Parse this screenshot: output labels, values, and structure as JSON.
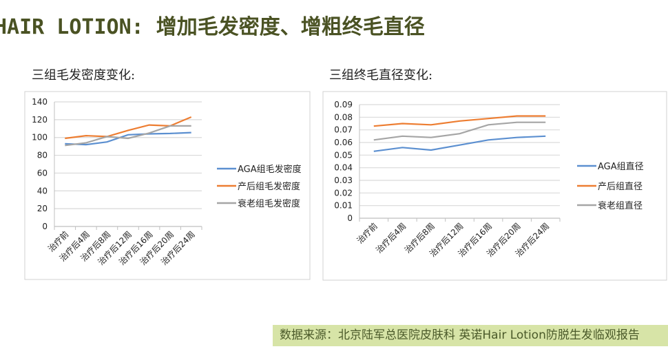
{
  "title": "HAIR LOTION: 增加毛发密度、增粗终毛直径",
  "subtitles": [
    "三组毛发密度变化:",
    "三组终毛直径变化:"
  ],
  "footer": "数据来源：北京陆军总医院皮肤科 英诺Hair Lotion防脱生发临观报告",
  "colors": {
    "blue": "#5b8fd0",
    "orange": "#ed7d31",
    "gray": "#a5a5a5",
    "title": "#4a5223",
    "footer_bg": "#d7e4a7"
  },
  "chart_data": [
    {
      "type": "line",
      "title": "三组毛发密度变化:",
      "categories": [
        "治疗前",
        "治疗后4周",
        "治疗后8周",
        "治疗后12周",
        "治疗后16周",
        "治疗后20周",
        "治疗后24周"
      ],
      "ylim": [
        0,
        140
      ],
      "yticks": [
        "0",
        "20",
        "40",
        "60",
        "80",
        "100",
        "120",
        "140"
      ],
      "grid": true,
      "legend": "right",
      "series": [
        {
          "name": "AGA组毛发密度",
          "color": "#5b8fd0",
          "values": [
            93,
            92,
            95,
            103,
            104,
            104.5,
            105.5
          ]
        },
        {
          "name": "产后组毛发密度",
          "color": "#ed7d31",
          "values": [
            99,
            102,
            101,
            108,
            114,
            113,
            123
          ]
        },
        {
          "name": "衰老组毛发密度",
          "color": "#a5a5a5",
          "values": [
            91,
            94,
            101,
            99,
            105,
            113,
            113
          ]
        }
      ]
    },
    {
      "type": "line",
      "title": "三组终毛直径变化:",
      "categories": [
        "治疗前",
        "治疗后4周",
        "治疗后8周",
        "治疗后12周",
        "治疗后16周",
        "治疗后20周",
        "治疗后24周"
      ],
      "ylim": [
        0,
        0.09
      ],
      "yticks": [
        "0",
        "0.01",
        "0.02",
        "0.03",
        "0.04",
        "0.05",
        "0.06",
        "0.07",
        "0.08",
        "0.09"
      ],
      "grid": true,
      "legend": "right",
      "series": [
        {
          "name": "AGA组直径",
          "color": "#5b8fd0",
          "values": [
            0.053,
            0.056,
            0.054,
            0.058,
            0.062,
            0.064,
            0.065
          ]
        },
        {
          "name": "产后组直径",
          "color": "#ed7d31",
          "values": [
            0.073,
            0.075,
            0.074,
            0.077,
            0.079,
            0.081,
            0.081
          ]
        },
        {
          "name": "衰老组直径",
          "color": "#a5a5a5",
          "values": [
            0.062,
            0.065,
            0.064,
            0.067,
            0.074,
            0.076,
            0.076
          ]
        }
      ]
    }
  ]
}
